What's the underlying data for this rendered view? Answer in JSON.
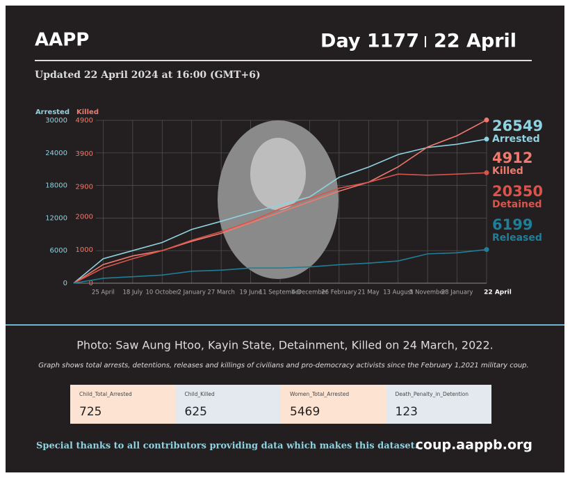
{
  "header": {
    "left": "AAPP",
    "day": "Day 1177",
    "date": "22 April"
  },
  "updated": "Updated 22 April 2024 at 16:00 (GMT+6)",
  "chart_data": {
    "type": "line",
    "categories": [
      null,
      "25 April",
      "18 July",
      "10 October",
      "2 January",
      "27 March",
      "19 June",
      "11 September",
      "4 December",
      "26 February",
      "21 May",
      "13 August",
      "5 November",
      "28 January",
      "22 April"
    ],
    "series": [
      {
        "name": "Arrested",
        "color": "#8fd3e0",
        "values": [
          0,
          4500,
          6000,
          7500,
          9900,
          11400,
          13000,
          14400,
          15900,
          19500,
          21400,
          23700,
          25000,
          25600,
          26549
        ]
      },
      {
        "name": "Killed",
        "color": "#f07a6e",
        "axis": "y2",
        "values": [
          0,
          560,
          820,
          980,
          1260,
          1500,
          1820,
          2130,
          2450,
          2770,
          3040,
          3500,
          4100,
          4440,
          4912
        ]
      },
      {
        "name": "Detained",
        "color": "#d9554c",
        "values": [
          0,
          2800,
          4500,
          6000,
          7900,
          9500,
          11400,
          13700,
          15600,
          17500,
          18600,
          20100,
          19900,
          20100,
          20350
        ]
      },
      {
        "name": "Released",
        "color": "#1f7f99",
        "values": [
          0,
          900,
          1200,
          1500,
          2200,
          2400,
          2800,
          2800,
          3000,
          3400,
          3700,
          4100,
          5400,
          5600,
          6199
        ]
      }
    ],
    "ylim": [
      0,
      30000
    ],
    "yticks": [
      0,
      6000,
      12000,
      18000,
      24000,
      30000
    ],
    "y2lim": [
      0,
      4900
    ],
    "y2ticks": [
      0,
      1000,
      2000,
      2900,
      3900,
      4900
    ],
    "grid": true
  },
  "caption": "Photo: Saw Aung Htoo, Kayin State, Detainment, Killed on 24 March, 2022.",
  "note": "Graph shows total arrests, detentions, releases and killings of civilians and pro-democracy activists since the February 1,2021 military coup.",
  "stats": [
    {
      "label": "Child_Total_Arrested",
      "value": 725
    },
    {
      "label": "Child_Killed",
      "value": 625
    },
    {
      "label": "Women_Total_Arrested",
      "value": 5469
    },
    {
      "label": "Death_Penalty_in_Detention",
      "value": 123
    }
  ],
  "footer": {
    "thanks": "Special thanks to all contributors providing data which makes this dataset.",
    "url": "coup.aappb.org"
  }
}
